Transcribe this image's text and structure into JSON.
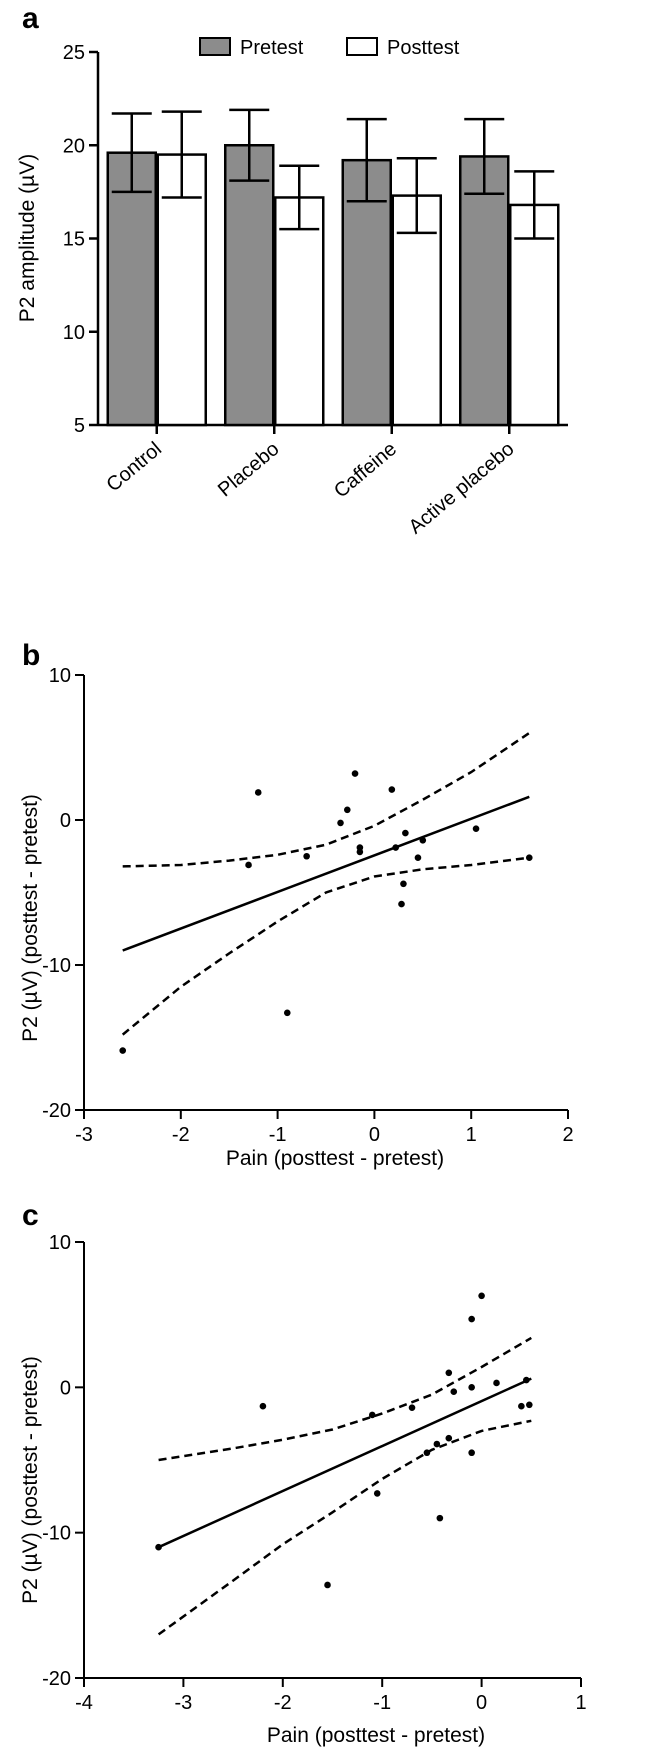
{
  "panels": [
    {
      "letter": "a"
    },
    {
      "letter": "b"
    },
    {
      "letter": "c"
    }
  ],
  "chart_data": [
    {
      "type": "bar",
      "panel": "a",
      "title": "",
      "xlabel": "",
      "ylabel": "P2 amplitude (µV)",
      "ylim": [
        5,
        25
      ],
      "yticks": [
        5,
        10,
        15,
        20,
        25
      ],
      "categories": [
        "Control",
        "Placebo",
        "Caffeine",
        "Active placebo"
      ],
      "legend_position": "top",
      "series": [
        {
          "name": "Pretest",
          "color": "#8c8c8c",
          "values": [
            19.6,
            20.0,
            19.2,
            19.4
          ],
          "errors": [
            2.1,
            1.9,
            2.2,
            2.0
          ]
        },
        {
          "name": "Posttest",
          "color": "#ffffff",
          "values": [
            19.5,
            17.2,
            17.3,
            16.8
          ],
          "errors": [
            2.3,
            1.7,
            2.0,
            1.8
          ]
        }
      ]
    },
    {
      "type": "scatter",
      "panel": "b",
      "title": "",
      "xlabel": "Pain (posttest - pretest)",
      "ylabel": "P2 (µV) (posttest - pretest)",
      "xlim": [
        -3,
        2
      ],
      "ylim": [
        -20,
        10
      ],
      "xticks": [
        -3,
        -2,
        -1,
        0,
        1,
        2
      ],
      "yticks": [
        -20,
        -10,
        0,
        10
      ],
      "points": [
        {
          "x": -2.6,
          "y": -15.9
        },
        {
          "x": -1.3,
          "y": -3.1
        },
        {
          "x": -1.2,
          "y": 1.9
        },
        {
          "x": -0.9,
          "y": -13.3
        },
        {
          "x": -0.7,
          "y": -2.5
        },
        {
          "x": -0.35,
          "y": -0.2
        },
        {
          "x": -0.28,
          "y": 0.7
        },
        {
          "x": -0.2,
          "y": 3.2
        },
        {
          "x": -0.15,
          "y": -1.9
        },
        {
          "x": -0.15,
          "y": -2.2
        },
        {
          "x": 0.18,
          "y": 2.1
        },
        {
          "x": 0.22,
          "y": -1.9
        },
        {
          "x": 0.28,
          "y": -5.8
        },
        {
          "x": 0.3,
          "y": -4.4
        },
        {
          "x": 0.32,
          "y": -0.9
        },
        {
          "x": 0.45,
          "y": -2.6
        },
        {
          "x": 0.5,
          "y": -1.4
        },
        {
          "x": 1.05,
          "y": -0.6
        },
        {
          "x": 1.6,
          "y": -2.6
        }
      ],
      "fit_line": {
        "x": [
          -2.6,
          1.6
        ],
        "y": [
          -9.0,
          1.6
        ]
      },
      "ci_upper": {
        "x": [
          -2.6,
          -2.0,
          -1.5,
          -1.0,
          -0.5,
          0.0,
          0.5,
          1.0,
          1.6
        ],
        "y": [
          -3.2,
          -3.1,
          -2.8,
          -2.4,
          -1.7,
          -0.4,
          1.4,
          3.3,
          6.0
        ]
      },
      "ci_lower": {
        "x": [
          -2.6,
          -2.0,
          -1.5,
          -1.0,
          -0.5,
          0.0,
          0.5,
          1.0,
          1.6
        ],
        "y": [
          -14.8,
          -11.5,
          -9.2,
          -7.0,
          -5.0,
          -3.9,
          -3.4,
          -3.1,
          -2.6
        ]
      }
    },
    {
      "type": "scatter",
      "panel": "c",
      "title": "",
      "xlabel": "Pain (posttest - pretest)",
      "ylabel": "P2 (µV) (posttest - pretest)",
      "xlim": [
        -4,
        1
      ],
      "ylim": [
        -20,
        10
      ],
      "xticks": [
        -4,
        -3,
        -2,
        -1,
        0,
        1
      ],
      "yticks": [
        -20,
        -10,
        0,
        10
      ],
      "points": [
        {
          "x": -3.25,
          "y": -11.0
        },
        {
          "x": -2.2,
          "y": -1.3
        },
        {
          "x": -1.55,
          "y": -13.6
        },
        {
          "x": -1.1,
          "y": -1.9
        },
        {
          "x": -1.05,
          "y": -7.3
        },
        {
          "x": -0.7,
          "y": -1.4
        },
        {
          "x": -0.55,
          "y": -4.5
        },
        {
          "x": -0.45,
          "y": -3.9
        },
        {
          "x": -0.42,
          "y": -9.0
        },
        {
          "x": -0.33,
          "y": -3.5
        },
        {
          "x": -0.33,
          "y": 1.0
        },
        {
          "x": -0.28,
          "y": -0.3
        },
        {
          "x": -0.1,
          "y": 4.7
        },
        {
          "x": -0.1,
          "y": 0.0
        },
        {
          "x": -0.1,
          "y": -4.5
        },
        {
          "x": 0.0,
          "y": 6.3
        },
        {
          "x": 0.15,
          "y": 0.3
        },
        {
          "x": 0.4,
          "y": -1.3
        },
        {
          "x": 0.45,
          "y": 0.5
        },
        {
          "x": 0.48,
          "y": -1.2
        }
      ],
      "fit_line": {
        "x": [
          -3.25,
          0.5
        ],
        "y": [
          -11.0,
          0.6
        ]
      },
      "ci_upper": {
        "x": [
          -3.25,
          -2.5,
          -2.0,
          -1.5,
          -1.0,
          -0.5,
          0.0,
          0.5
        ],
        "y": [
          -5.0,
          -4.2,
          -3.6,
          -2.9,
          -1.8,
          -0.5,
          1.4,
          3.4
        ]
      },
      "ci_lower": {
        "x": [
          -3.25,
          -2.5,
          -2.0,
          -1.5,
          -1.0,
          -0.5,
          0.0,
          0.5
        ],
        "y": [
          -17.0,
          -13.3,
          -10.8,
          -8.6,
          -6.3,
          -4.3,
          -3.0,
          -2.3
        ]
      }
    }
  ]
}
